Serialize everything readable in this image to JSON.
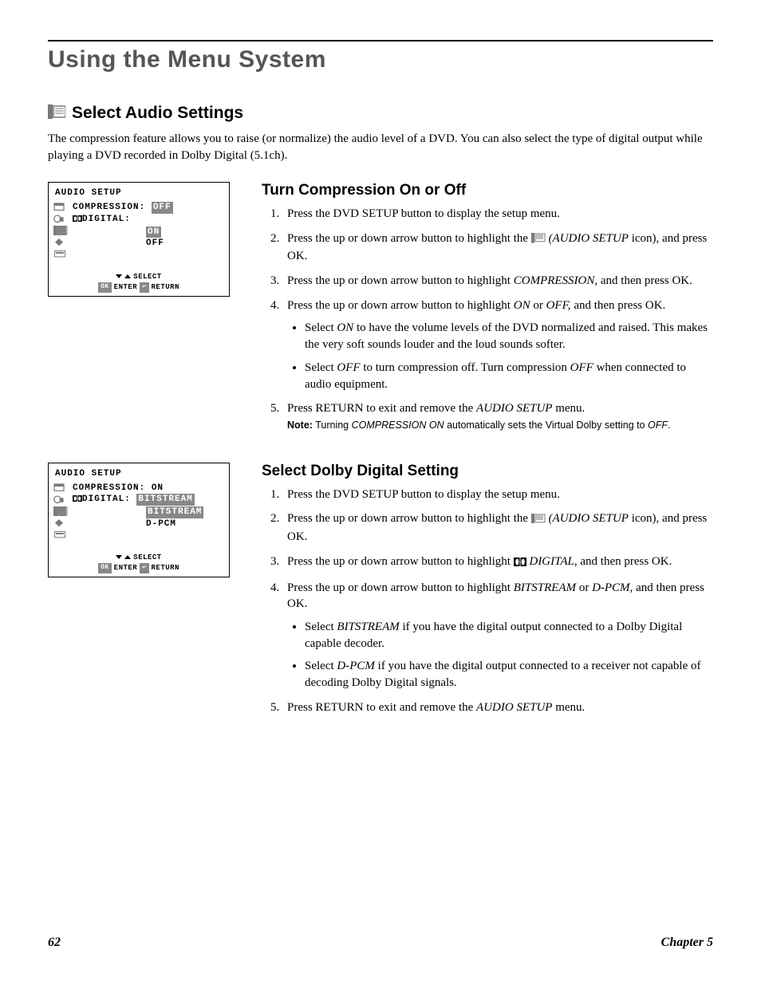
{
  "colors": {
    "page_bg": "#ffffff",
    "text": "#000000",
    "chapter_title_gray": "#555555",
    "screenshot_highlight_bg": "#888888",
    "screenshot_highlight_text": "#ffffff",
    "nav_box_bg": "#888888",
    "nav_box_text": "#ffffff",
    "icon_gray": "#7a7a7a",
    "rule": "#000000"
  },
  "chapter_title": "Using the Menu System",
  "section": {
    "title": "Select Audio Settings",
    "intro": "The compression feature allows you to raise (or normalize) the audio level of a DVD. You can also select the type of digital output while playing a DVD recorded in Dolby Digital (5.1ch)."
  },
  "screenshot1": {
    "title": "AUDIO SETUP",
    "icons": [
      "select-tv",
      "loop-lock",
      "audio-setup",
      "audio-virtual",
      "caption"
    ],
    "rows": [
      {
        "label": "COMPRESSION:",
        "value": "OFF",
        "selected": true,
        "options": []
      },
      {
        "label": "  DIGITAL:",
        "value": "",
        "selected": false,
        "options": [
          {
            "text": "ON",
            "hilite": true
          },
          {
            "text": "OFF",
            "hilite": false
          }
        ]
      }
    ],
    "nav": {
      "select": "SELECT",
      "ok": "OK",
      "enter": "ENTER",
      "return_icon": true,
      "return": "RETURN"
    }
  },
  "screenshot2": {
    "title": "AUDIO SETUP",
    "icons": [
      "select-tv",
      "loop-lock",
      "audio-setup",
      "audio-virtual",
      "caption"
    ],
    "rows": [
      {
        "label": "COMPRESSION:",
        "value": "ON",
        "selected": false,
        "options": []
      },
      {
        "label": "  DIGITAL:",
        "value": "BITSTREAM",
        "selected": true,
        "options": [
          {
            "text": "BITSTREAM",
            "hilite": true
          },
          {
            "text": "D-PCM",
            "hilite": false
          }
        ]
      }
    ],
    "nav": {
      "select": "SELECT",
      "ok": "OK",
      "enter": "ENTER",
      "return_icon": true,
      "return": "RETURN"
    }
  },
  "compression": {
    "heading": "Turn Compression On or Off",
    "steps": [
      {
        "text": "Press the DVD SETUP button to display the setup menu."
      },
      {
        "prefix": "Press the up or down arrow button to highlight the ",
        "icon": "audio-setup",
        "after_icon": " (AUDIO SETUP",
        "after_italic": " icon), and press OK."
      },
      {
        "prefix": "Press the up or down arrow button to highlight ",
        "italic": "COMPRESSION,",
        "suffix": " and then press OK."
      },
      {
        "prefix": "Press the up or down arrow button to highlight ",
        "italic1": "ON",
        "mid": " or ",
        "italic2": "OFF,",
        "suffix": " and then press OK.",
        "bullets": [
          {
            "prefix": "Select ",
            "italic": "ON",
            "suffix": " to have the volume levels of the DVD normalized and raised. This makes the very soft sounds louder and the loud sounds softer."
          },
          {
            "prefix": "Select ",
            "italic": "OFF",
            "mid": " to turn compression off. Turn compression ",
            "italic2": "OFF",
            "suffix": " when connected to audio equipment."
          }
        ]
      },
      {
        "prefix": "Press RETURN to exit and remove the ",
        "italic": "AUDIO SETUP",
        "suffix": " menu.",
        "note": {
          "label": "Note:",
          "prefix": " Turning ",
          "italic1": "COMPRESSION ON",
          "mid": " automatically sets the Virtual Dolby setting to ",
          "italic2": "OFF",
          "suffix": "."
        }
      }
    ]
  },
  "dolby": {
    "heading": "Select Dolby Digital Setting",
    "steps": [
      {
        "text": "Press the DVD SETUP button to display the setup menu."
      },
      {
        "prefix": "Press the up or down arrow button to highlight the ",
        "icon": "audio-setup",
        "after_icon": " (AUDIO SETUP",
        "after_italic": " icon), and press OK."
      },
      {
        "prefix": "Press the up or down arrow button to highlight  ",
        "icon": "dolby",
        "after_icon": " DIGITAL,",
        "suffix": " and then press OK."
      },
      {
        "prefix": "Press the up or down arrow button to highlight ",
        "italic1": "BITSTREAM",
        "mid": " or ",
        "italic2": "D-PCM,",
        "suffix": " and then press OK.",
        "bullets": [
          {
            "prefix": "Select ",
            "italic": "BITSTREAM",
            "suffix": " if you have the digital output connected to a Dolby Digital capable decoder."
          },
          {
            "prefix": "Select ",
            "italic": "D-PCM",
            "suffix": " if you have the digital output connected to a receiver not capable of decoding Dolby Digital signals."
          }
        ]
      },
      {
        "prefix": "Press RETURN to exit and remove the ",
        "italic": "AUDIO SETUP",
        "suffix": " menu."
      }
    ]
  },
  "footer": {
    "page": "62",
    "chapter": "Chapter 5"
  }
}
